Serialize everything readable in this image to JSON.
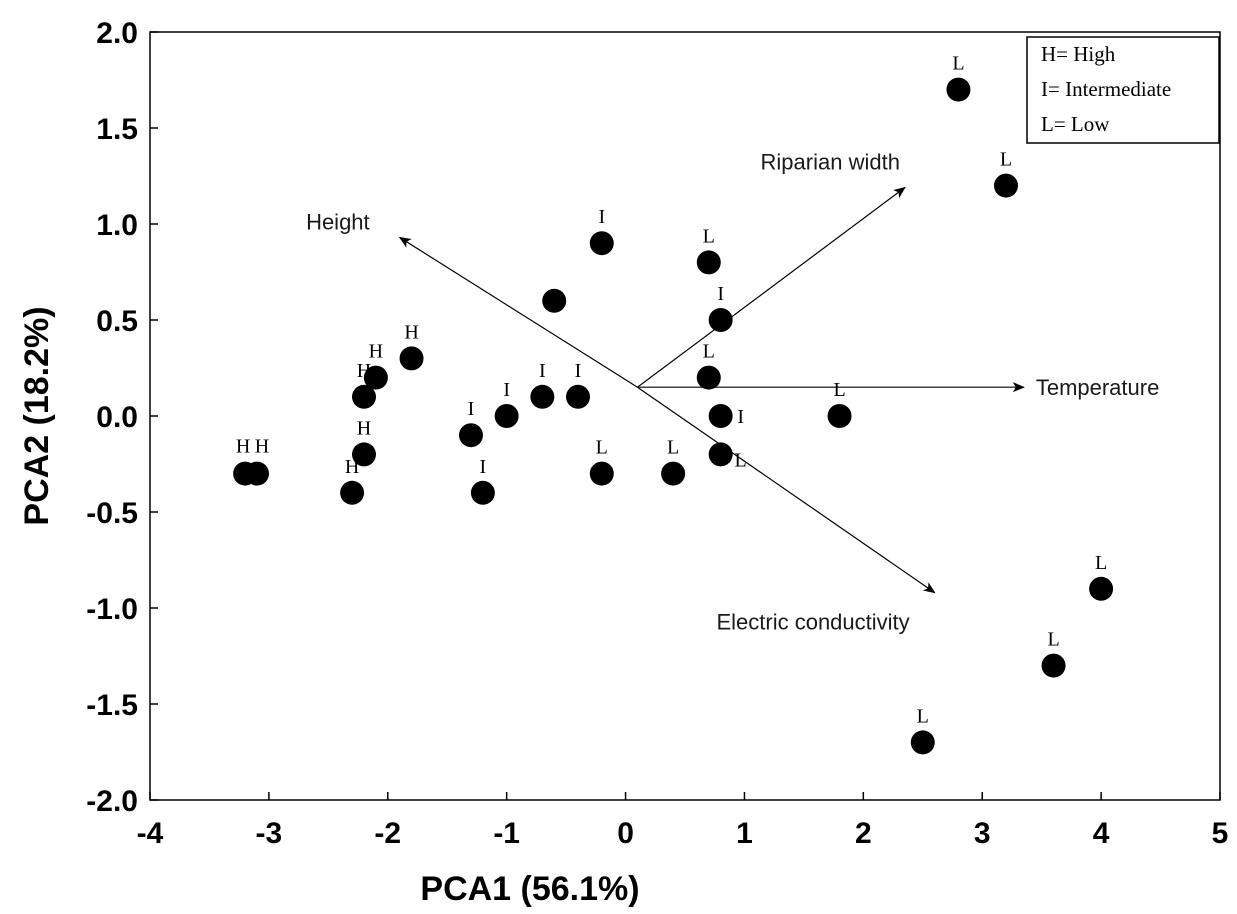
{
  "chart_data": {
    "type": "scatter",
    "xlabel": "PCA1 (56.1%)",
    "ylabel": "PCA2 (18.2%)",
    "xlim": [
      -4,
      5
    ],
    "ylim": [
      -2.0,
      2.0
    ],
    "xticks": [
      -4,
      -3,
      -2,
      -1,
      0,
      1,
      2,
      3,
      4,
      5
    ],
    "xtick_labels": [
      "-4",
      "-3",
      "-2",
      "-1",
      "0",
      "1",
      "2",
      "3",
      "4",
      "5"
    ],
    "yticks": [
      -2.0,
      -1.5,
      -1.0,
      -0.5,
      0.0,
      0.5,
      1.0,
      1.5,
      2.0
    ],
    "ytick_labels": [
      "-2.0",
      "-1.5",
      "-1.0",
      "-0.5",
      "0.0",
      "0.5",
      "1.0",
      "1.5",
      "2.0"
    ],
    "grid": false,
    "legend_position": "top-right",
    "legend": [
      "H= High",
      "I= Intermediate",
      "L= Low"
    ],
    "points": [
      {
        "x": 2.8,
        "y": 1.7,
        "label": "L"
      },
      {
        "x": 3.2,
        "y": 1.2,
        "label": "L"
      },
      {
        "x": -0.2,
        "y": 0.9,
        "label": "I"
      },
      {
        "x": 0.7,
        "y": 0.8,
        "label": "L"
      },
      {
        "x": -0.6,
        "y": 0.6,
        "label": ""
      },
      {
        "x": 0.8,
        "y": 0.5,
        "label": "I"
      },
      {
        "x": -1.8,
        "y": 0.3,
        "label": "H"
      },
      {
        "x": -2.1,
        "y": 0.2,
        "label": "H"
      },
      {
        "x": 0.7,
        "y": 0.2,
        "label": "L"
      },
      {
        "x": -2.2,
        "y": 0.1,
        "label": "H"
      },
      {
        "x": -0.7,
        "y": 0.1,
        "label": "I"
      },
      {
        "x": -0.4,
        "y": 0.1,
        "label": "I"
      },
      {
        "x": -1.0,
        "y": 0.0,
        "label": "I"
      },
      {
        "x": 0.8,
        "y": 0.0,
        "label": "I"
      },
      {
        "x": 1.8,
        "y": 0.0,
        "label": "L"
      },
      {
        "x": -1.3,
        "y": -0.1,
        "label": "I"
      },
      {
        "x": -2.2,
        "y": -0.2,
        "label": "H"
      },
      {
        "x": 0.8,
        "y": -0.2,
        "label": "L"
      },
      {
        "x": -3.2,
        "y": -0.3,
        "label": "H"
      },
      {
        "x": -3.1,
        "y": -0.3,
        "label": "H"
      },
      {
        "x": -0.2,
        "y": -0.3,
        "label": "L"
      },
      {
        "x": 0.4,
        "y": -0.3,
        "label": "L"
      },
      {
        "x": -2.3,
        "y": -0.4,
        "label": "H"
      },
      {
        "x": -1.2,
        "y": -0.4,
        "label": "I"
      },
      {
        "x": 4.0,
        "y": -0.9,
        "label": "L"
      },
      {
        "x": 3.6,
        "y": -1.3,
        "label": "L"
      },
      {
        "x": 2.5,
        "y": -1.7,
        "label": "L"
      }
    ],
    "vectors": {
      "origin": [
        0.1,
        0.15
      ],
      "items": [
        {
          "name": "Height",
          "x": -1.9,
          "y": 0.93
        },
        {
          "name": "Riparian width",
          "x": 2.35,
          "y": 1.19
        },
        {
          "name": "Temperature",
          "x": 3.35,
          "y": 0.15
        },
        {
          "name": "Electric conductivity",
          "x": 2.6,
          "y": -0.92
        }
      ]
    }
  }
}
